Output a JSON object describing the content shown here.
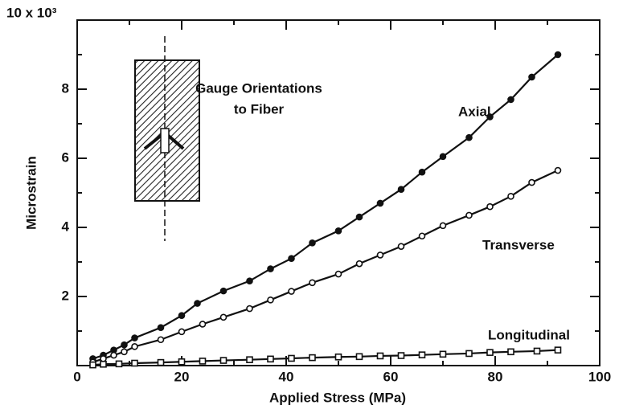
{
  "chart_data": {
    "type": "line",
    "xlabel": "Applied Stress (MPa)",
    "ylabel": "Microstrain",
    "xlim": [
      0,
      100
    ],
    "xticks": [
      0,
      20,
      40,
      60,
      80,
      100
    ],
    "ylim": [
      0,
      10
    ],
    "yticks": [
      2,
      4,
      6,
      8,
      {
        "value": 10,
        "label": "10 x 10³"
      }
    ],
    "series": [
      {
        "name": "Axial",
        "color": "#111111",
        "marker": "filled-circle",
        "x": [
          3,
          5,
          7,
          9,
          11,
          16,
          20,
          23,
          28,
          33,
          37,
          41,
          45,
          50,
          54,
          58,
          62,
          66,
          70,
          75,
          79,
          83,
          87,
          92
        ],
        "values": [
          0.2,
          0.3,
          0.45,
          0.6,
          0.8,
          1.1,
          1.45,
          1.8,
          2.16,
          2.45,
          2.8,
          3.1,
          3.55,
          3.9,
          4.3,
          4.7,
          5.1,
          5.6,
          6.05,
          6.6,
          7.2,
          7.7,
          8.35,
          9.0
        ]
      },
      {
        "name": "Transverse",
        "color": "#111111",
        "marker": "open-circle",
        "x": [
          3,
          5,
          7,
          9,
          11,
          16,
          20,
          24,
          28,
          33,
          37,
          41,
          45,
          50,
          54,
          58,
          62,
          66,
          70,
          75,
          79,
          83,
          87,
          92
        ],
        "values": [
          0.1,
          0.2,
          0.3,
          0.4,
          0.55,
          0.75,
          0.98,
          1.2,
          1.4,
          1.65,
          1.9,
          2.15,
          2.4,
          2.65,
          2.95,
          3.2,
          3.45,
          3.75,
          4.05,
          4.35,
          4.6,
          4.9,
          5.3,
          5.65
        ]
      },
      {
        "name": "Longitudinal",
        "color": "#111111",
        "marker": "open-square",
        "x": [
          3,
          5,
          8,
          11,
          16,
          20,
          24,
          28,
          33,
          37,
          41,
          45,
          50,
          54,
          58,
          62,
          66,
          70,
          75,
          79,
          83,
          88,
          92
        ],
        "values": [
          0.02,
          0.04,
          0.05,
          0.07,
          0.09,
          0.11,
          0.13,
          0.15,
          0.17,
          0.19,
          0.21,
          0.23,
          0.25,
          0.26,
          0.28,
          0.29,
          0.31,
          0.33,
          0.35,
          0.38,
          0.4,
          0.42,
          0.45
        ]
      }
    ],
    "annotations": [
      "Gauge Orientations",
      "to Fiber"
    ]
  }
}
